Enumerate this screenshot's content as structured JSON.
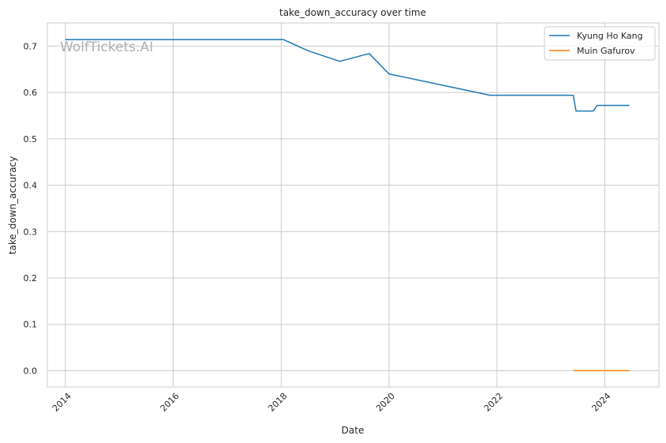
{
  "chart_data": {
    "type": "line",
    "title": "take_down_accuracy over time",
    "xlabel": "Date",
    "ylabel": "take_down_accuracy",
    "watermark": "WolfTickets.AI",
    "xlim": [
      "2013-09-01",
      "2025-01-01"
    ],
    "ylim": [
      -0.035,
      0.75
    ],
    "x_ticks": [
      "2014",
      "2016",
      "2018",
      "2020",
      "2022",
      "2024"
    ],
    "y_ticks": [
      "0.0",
      "0.1",
      "0.2",
      "0.3",
      "0.4",
      "0.5",
      "0.6",
      "0.7"
    ],
    "grid": true,
    "legend_position": "top-right",
    "series": [
      {
        "name": "Kyung Ho Kang",
        "color": "#1f77b4",
        "points": [
          {
            "x": "2014-01-01",
            "y": 0.714
          },
          {
            "x": "2018-01-15",
            "y": 0.714
          },
          {
            "x": "2018-07-01",
            "y": 0.69
          },
          {
            "x": "2019-02-01",
            "y": 0.667
          },
          {
            "x": "2019-08-20",
            "y": 0.684
          },
          {
            "x": "2020-01-01",
            "y": 0.64
          },
          {
            "x": "2021-11-15",
            "y": 0.594
          },
          {
            "x": "2023-06-01",
            "y": 0.594
          },
          {
            "x": "2023-06-20",
            "y": 0.56
          },
          {
            "x": "2023-10-15",
            "y": 0.56
          },
          {
            "x": "2023-11-10",
            "y": 0.572
          },
          {
            "x": "2024-06-15",
            "y": 0.572
          }
        ]
      },
      {
        "name": "Muin Gafurov",
        "color": "#ff7f0e",
        "points": [
          {
            "x": "2023-06-01",
            "y": 0.0
          },
          {
            "x": "2024-06-15",
            "y": 0.0
          }
        ]
      }
    ]
  }
}
